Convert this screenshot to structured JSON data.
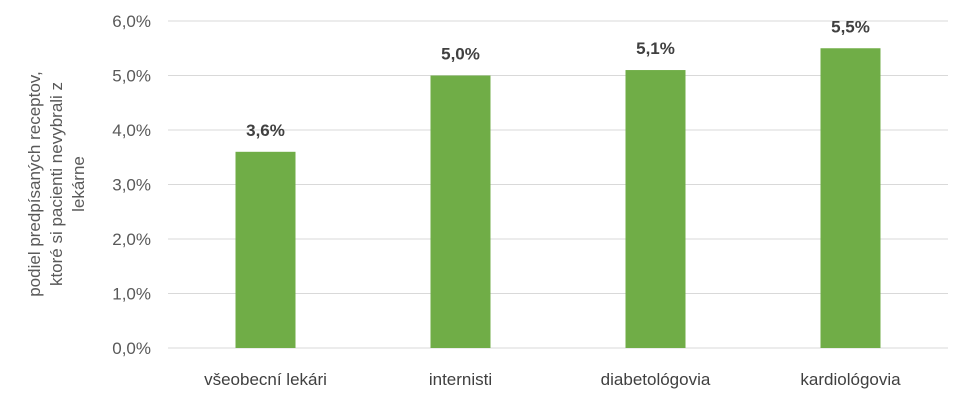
{
  "chart_data": {
    "type": "bar",
    "categories": [
      "všeobecní lekári",
      "internisti",
      "diabetológovia",
      "kardiológovia"
    ],
    "values": [
      3.6,
      5.0,
      5.1,
      5.5
    ],
    "data_labels": [
      "3,6%",
      "5,0%",
      "5,1%",
      "5,5%"
    ],
    "ylabel_lines": [
      "podiel predpísaných receptov,",
      "ktoré si pacienti nevybrali z",
      "lekárne"
    ],
    "ylim": [
      0,
      6
    ],
    "yticks": [
      0,
      1,
      2,
      3,
      4,
      5,
      6
    ],
    "ytick_labels": [
      "0,0%",
      "1,0%",
      "2,0%",
      "3,0%",
      "4,0%",
      "5,0%",
      "6,0%"
    ],
    "grid": true,
    "legend": "none",
    "bar_color": "#70ad47",
    "grid_color": "#d9d9d9"
  }
}
